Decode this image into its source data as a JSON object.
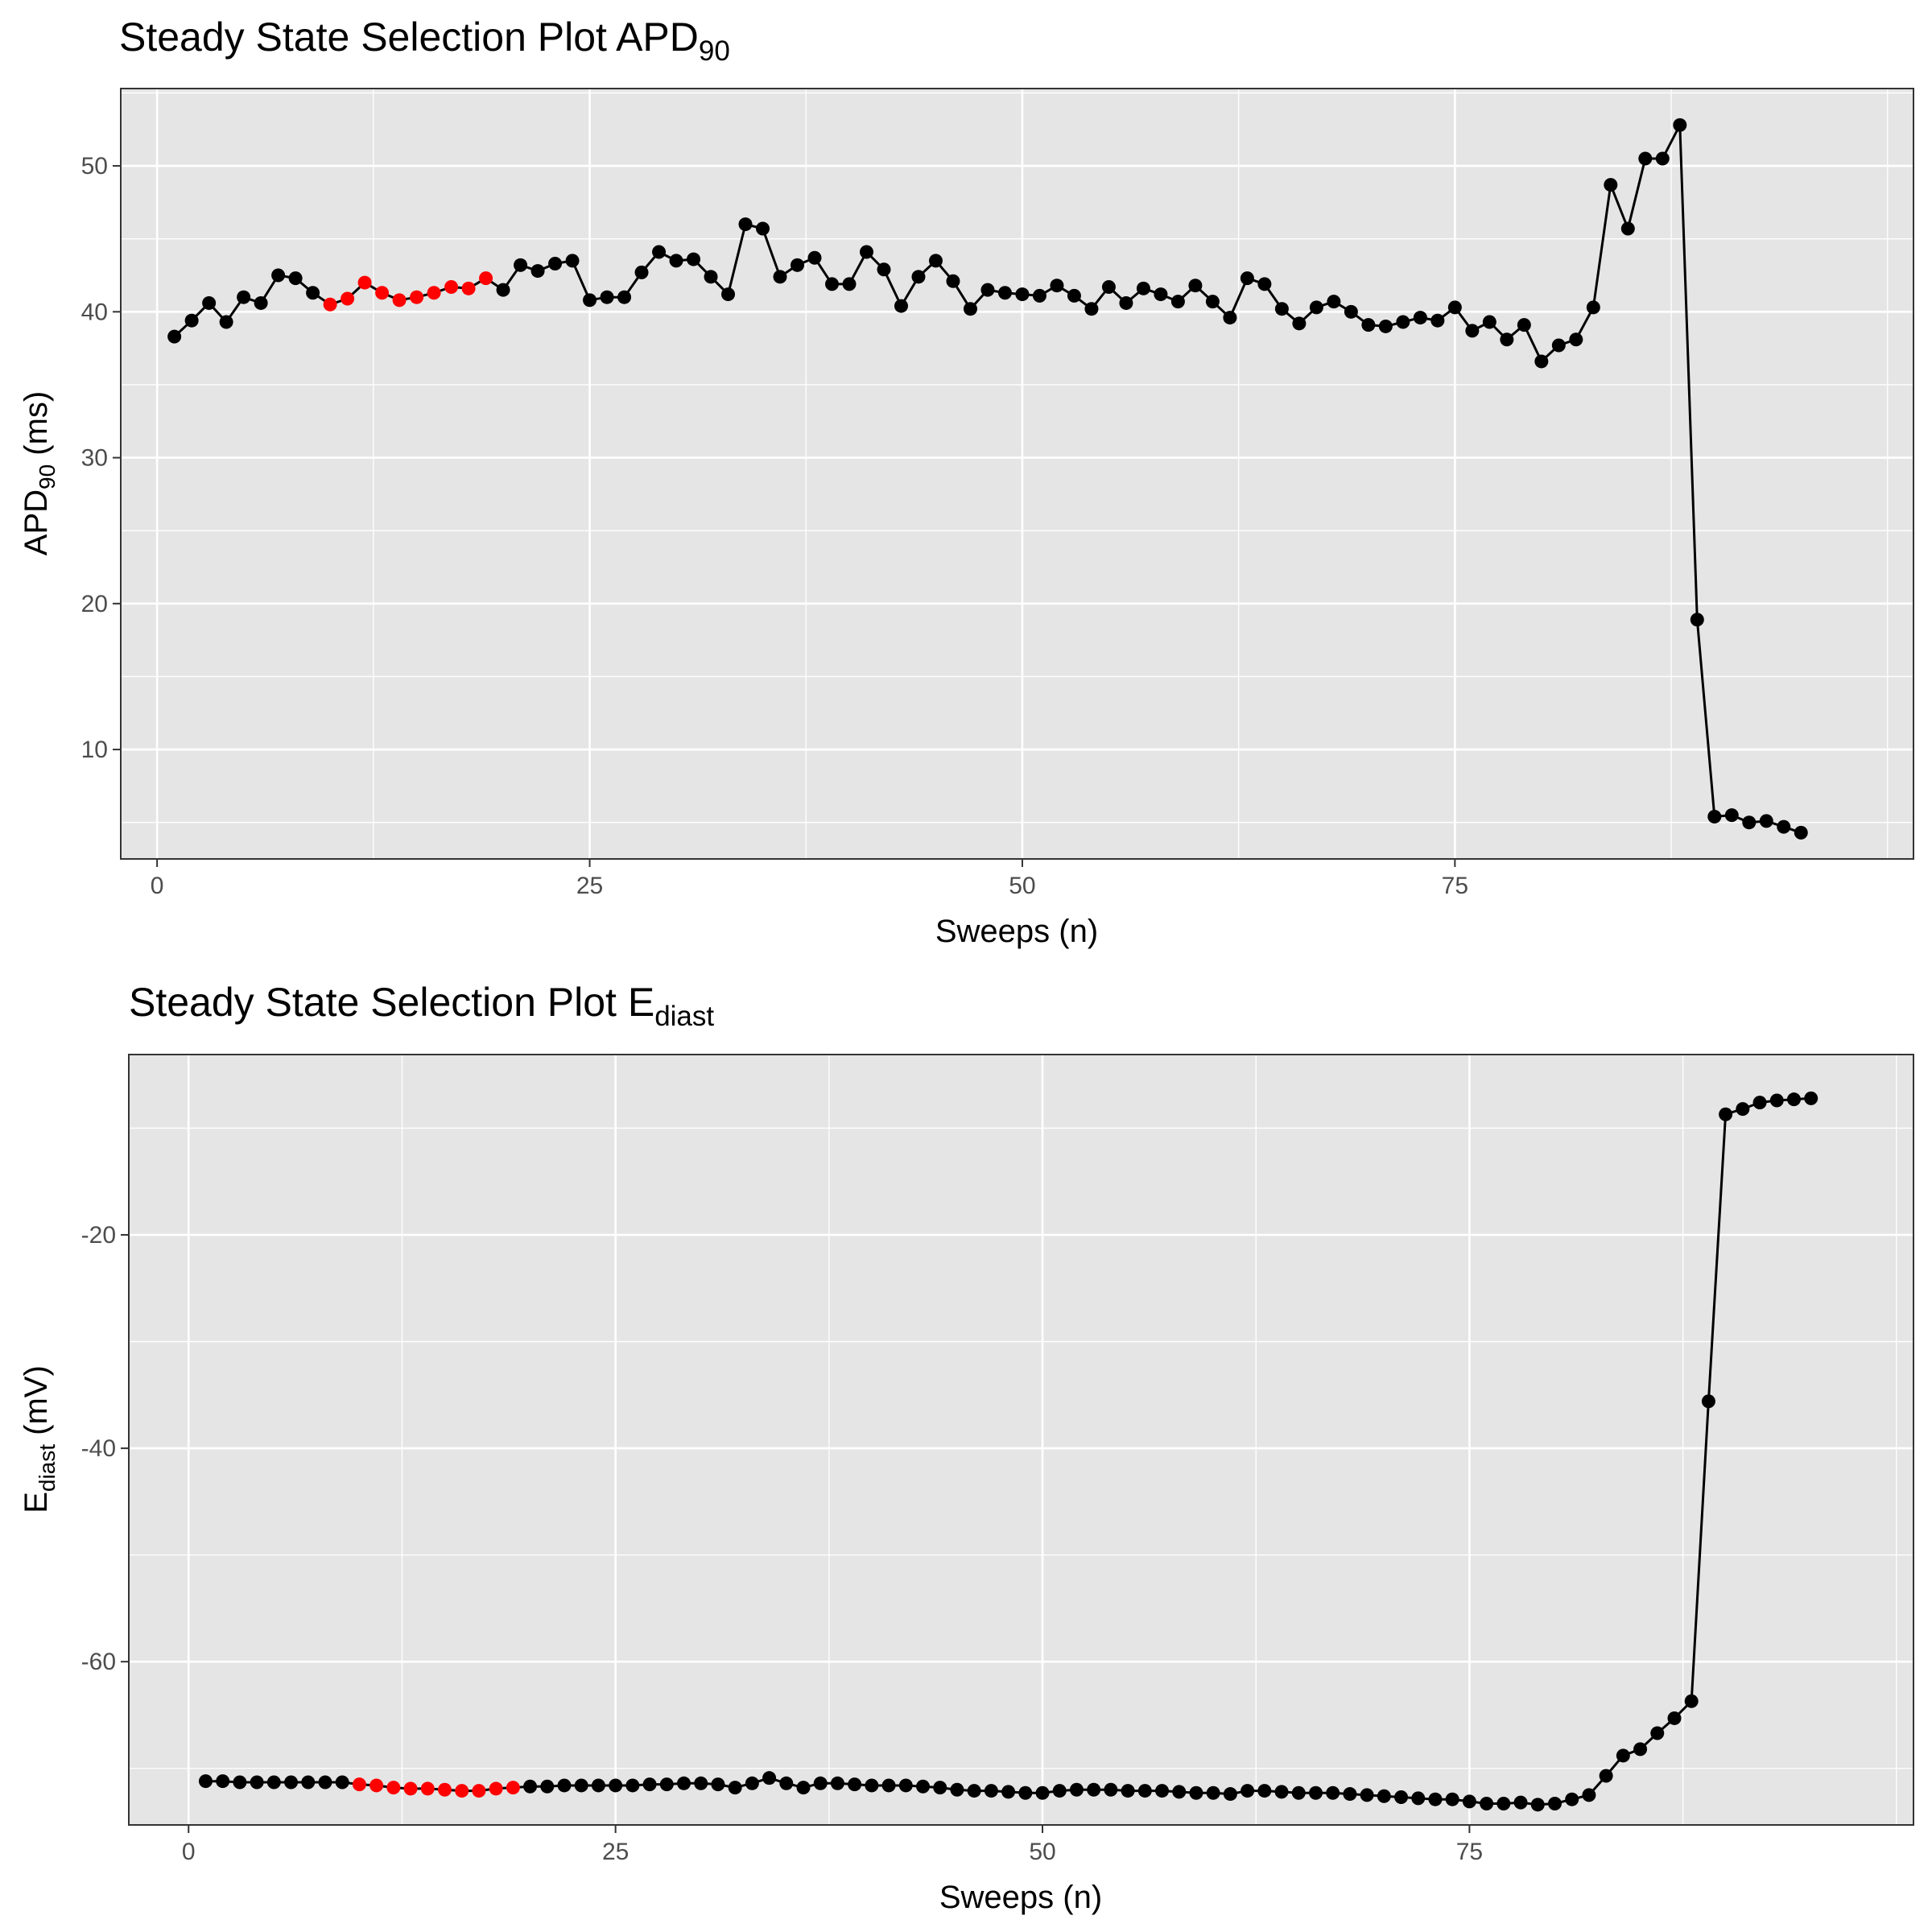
{
  "chart_data": [
    {
      "type": "line",
      "title_main": "Steady State Selection Plot APD",
      "title_sub": "90",
      "ylabel_main": "APD",
      "ylabel_sub": "90",
      "ylabel_tail": " (ms)",
      "xlabel": "Sweeps (n)",
      "xlim": [
        -2.1,
        101.5
      ],
      "ylim": [
        2.5,
        55.3
      ],
      "xticks": [
        0,
        25,
        50,
        75
      ],
      "yticks": [
        10,
        20,
        30,
        40,
        50
      ],
      "grid": true,
      "x": [
        1,
        2,
        3,
        4,
        5,
        6,
        7,
        8,
        9,
        10,
        11,
        12,
        13,
        14,
        15,
        16,
        17,
        18,
        19,
        20,
        21,
        22,
        23,
        24,
        25,
        26,
        27,
        28,
        29,
        30,
        31,
        32,
        33,
        34,
        35,
        36,
        37,
        38,
        39,
        40,
        41,
        42,
        43,
        44,
        45,
        46,
        47,
        48,
        49,
        50,
        51,
        52,
        53,
        54,
        55,
        56,
        57,
        58,
        59,
        60,
        61,
        62,
        63,
        64,
        65,
        66,
        67,
        68,
        69,
        70,
        71,
        72,
        73,
        74,
        75,
        76,
        77,
        78,
        79,
        80,
        81,
        82,
        83,
        84,
        85,
        86,
        87,
        88,
        89,
        90,
        91,
        92,
        93,
        94,
        95
      ],
      "series": [
        {
          "values": [
            38.3,
            39.4,
            40.6,
            39.3,
            41.0,
            40.6,
            42.5,
            42.3,
            41.3,
            40.5,
            40.9,
            42.0,
            41.3,
            40.8,
            41.0,
            41.3,
            41.7,
            41.6,
            42.3,
            41.5,
            43.2,
            42.8,
            43.3,
            43.5,
            40.8,
            41.0,
            41.0,
            42.7,
            44.1,
            43.5,
            43.6,
            42.4,
            41.2,
            46.0,
            45.7,
            42.4,
            43.2,
            43.7,
            41.9,
            41.9,
            44.1,
            42.9,
            40.4,
            42.4,
            43.5,
            42.1,
            40.2,
            41.5,
            41.3,
            41.2,
            41.1,
            41.8,
            41.1,
            40.2,
            41.7,
            40.6,
            41.6,
            41.2,
            40.7,
            41.8,
            40.7,
            39.6,
            42.3,
            41.9,
            40.2,
            39.2,
            40.3,
            40.7,
            40.0,
            39.1,
            39.0,
            39.3,
            39.6,
            39.4,
            40.3,
            38.7,
            39.3,
            38.1,
            39.1,
            36.6,
            37.7,
            38.1,
            40.3,
            48.7,
            45.7,
            50.5,
            50.5,
            52.8,
            18.9,
            5.4,
            5.5,
            5.0,
            5.1,
            4.7,
            4.3
          ]
        }
      ],
      "highlight_x": [
        10,
        11,
        12,
        13,
        14,
        15,
        16,
        17,
        18,
        19
      ],
      "colors": {
        "line": "#000000",
        "point": "#000000",
        "highlight": "#ff0000",
        "panel": "#e5e5e5",
        "grid": "#ffffff"
      }
    },
    {
      "type": "line",
      "title_main": "Steady State Selection Plot E",
      "title_sub": "diast",
      "ylabel_main": "E",
      "ylabel_sub": "diast",
      "ylabel_tail": " (mV)",
      "xlabel": "Sweeps (n)",
      "xlim": [
        -3.5,
        101.0
      ],
      "ylim": [
        -75.3,
        -3.1
      ],
      "xticks": [
        0,
        25,
        50,
        75
      ],
      "yticks": [
        -20,
        -40,
        -60
      ],
      "grid": true,
      "x": [
        1,
        2,
        3,
        4,
        5,
        6,
        7,
        8,
        9,
        10,
        11,
        12,
        13,
        14,
        15,
        16,
        17,
        18,
        19,
        20,
        21,
        22,
        23,
        24,
        25,
        26,
        27,
        28,
        29,
        30,
        31,
        32,
        33,
        34,
        35,
        36,
        37,
        38,
        39,
        40,
        41,
        42,
        43,
        44,
        45,
        46,
        47,
        48,
        49,
        50,
        51,
        52,
        53,
        54,
        55,
        56,
        57,
        58,
        59,
        60,
        61,
        62,
        63,
        64,
        65,
        66,
        67,
        68,
        69,
        70,
        71,
        72,
        73,
        74,
        75,
        76,
        77,
        78,
        79,
        80,
        81,
        82,
        83,
        84,
        85,
        86,
        87,
        88,
        89,
        90,
        91,
        92,
        93,
        94,
        95
      ],
      "series": [
        {
          "values": [
            -71.2,
            -71.2,
            -71.3,
            -71.3,
            -71.3,
            -71.3,
            -71.3,
            -71.3,
            -71.3,
            -71.5,
            -71.6,
            -71.8,
            -71.9,
            -71.9,
            -72.0,
            -72.1,
            -72.1,
            -71.9,
            -71.8,
            -71.7,
            -71.7,
            -71.6,
            -71.6,
            -71.6,
            -71.6,
            -71.6,
            -71.5,
            -71.5,
            -71.4,
            -71.4,
            -71.5,
            -71.8,
            -71.4,
            -70.9,
            -71.4,
            -71.8,
            -71.4,
            -71.4,
            -71.5,
            -71.6,
            -71.6,
            -71.6,
            -71.7,
            -71.8,
            -72.0,
            -72.1,
            -72.1,
            -72.2,
            -72.3,
            -72.3,
            -72.1,
            -72.0,
            -72.0,
            -72.0,
            -72.1,
            -72.1,
            -72.1,
            -72.2,
            -72.3,
            -72.3,
            -72.4,
            -72.1,
            -72.1,
            -72.2,
            -72.3,
            -72.3,
            -72.3,
            -72.4,
            -72.5,
            -72.6,
            -72.7,
            -72.8,
            -72.9,
            -72.9,
            -73.1,
            -73.3,
            -73.3,
            -73.2,
            -73.4,
            -73.3,
            -72.9,
            -72.5,
            -70.7,
            -68.8,
            -68.2,
            -66.7,
            -65.3,
            -63.7,
            -35.6,
            -8.7,
            -8.2,
            -7.6,
            -7.4,
            -7.3,
            -7.2
          ]
        }
      ],
      "highlight_x": [
        10,
        11,
        12,
        13,
        14,
        15,
        16,
        17,
        18,
        19
      ],
      "colors": {
        "line": "#000000",
        "point": "#000000",
        "highlight": "#ff0000",
        "panel": "#e5e5e5",
        "grid": "#ffffff"
      }
    }
  ]
}
